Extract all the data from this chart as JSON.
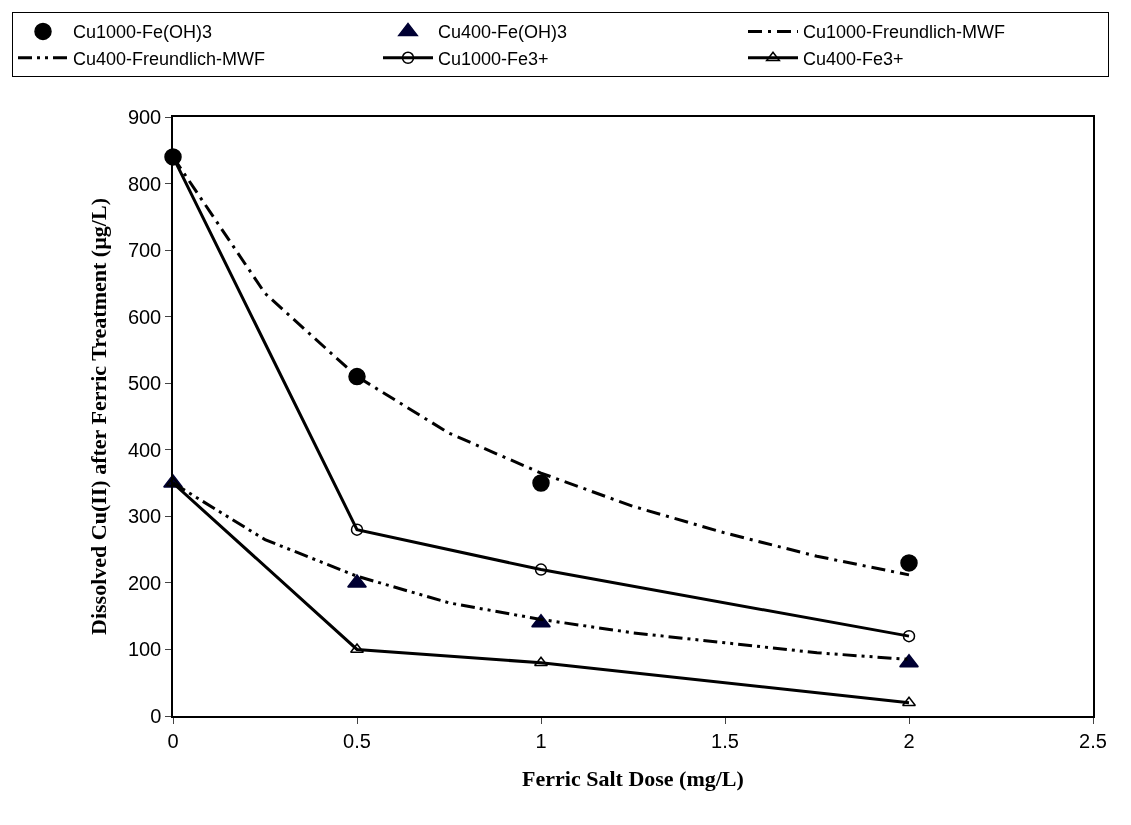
{
  "chart_data": {
    "type": "line",
    "xlabel": "Ferric Salt Dose (mg/L)",
    "ylabel": "Dissolved Cu(II) after Ferric Treatment (µg/L)",
    "xlim": [
      0,
      2.5
    ],
    "xticks": [
      0,
      0.5,
      1,
      1.5,
      2,
      2.5
    ],
    "ylim": [
      0,
      900
    ],
    "yticks": [
      0,
      100,
      200,
      300,
      400,
      500,
      600,
      700,
      800,
      900
    ],
    "grid": false,
    "legend": "top",
    "series": [
      {
        "name": "Cu1000-Fe(OH)3",
        "type": "scatter",
        "marker": "circle",
        "color": "#000000",
        "x": [
          0,
          0.5,
          1,
          2
        ],
        "values": [
          840,
          510,
          350,
          230
        ]
      },
      {
        "name": "Cu400-Fe(OH)3",
        "type": "scatter",
        "marker": "triangle",
        "color": "#000033",
        "x": [
          0,
          0.5,
          1,
          2
        ],
        "values": [
          350,
          200,
          140,
          80
        ]
      },
      {
        "name": "Cu1000-Freundlich-MWF",
        "marker": "none",
        "line_style": "dashdot",
        "color": "#000000",
        "x": [
          0,
          0.25,
          0.5,
          0.75,
          1,
          1.25,
          1.5,
          1.75,
          2
        ],
        "values": [
          840,
          635,
          510,
          425,
          365,
          315,
          275,
          240,
          212
        ]
      },
      {
        "name": "Cu400-Freundlich-MWF",
        "marker": "none",
        "line_style": "dashdotdot",
        "color": "#000000",
        "x": [
          0,
          0.25,
          0.5,
          0.75,
          1,
          1.25,
          1.5,
          1.75,
          2
        ],
        "values": [
          350,
          265,
          210,
          170,
          145,
          125,
          110,
          95,
          85
        ]
      },
      {
        "name": "Cu1000-Fe3+",
        "marker": "circle-open",
        "line_style": "solid",
        "color": "#000000",
        "x": [
          0,
          0.5,
          1,
          2
        ],
        "values": [
          840,
          280,
          220,
          120
        ]
      },
      {
        "name": "Cu400-Fe3+",
        "marker": "triangle-open",
        "line_style": "solid",
        "color": "#000000",
        "x": [
          0,
          0.5,
          1,
          2
        ],
        "values": [
          350,
          100,
          80,
          20
        ]
      }
    ]
  }
}
